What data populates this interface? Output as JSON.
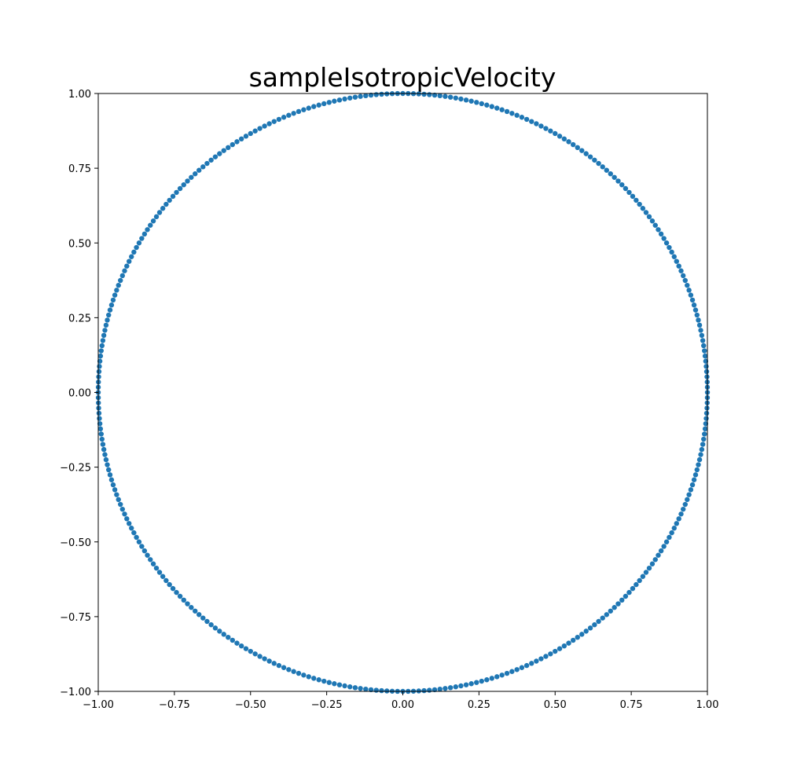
{
  "chart_data": {
    "type": "scatter",
    "title": "sampleIsotropicVelocity",
    "xlabel": "",
    "ylabel": "",
    "xlim": [
      -1.0,
      1.0
    ],
    "ylim": [
      -1.0,
      1.0
    ],
    "xticks": [
      -1.0,
      -0.75,
      -0.5,
      -0.25,
      0.0,
      0.25,
      0.5,
      0.75,
      1.0
    ],
    "yticks": [
      -1.0,
      -0.75,
      -0.5,
      -0.25,
      0.0,
      0.25,
      0.5,
      0.75,
      1.0
    ],
    "xtick_labels": [
      "−1.00",
      "−0.75",
      "−0.50",
      "−0.25",
      "0.00",
      "0.25",
      "0.50",
      "0.75",
      "1.00"
    ],
    "ytick_labels": [
      "−1.00",
      "−0.75",
      "−0.50",
      "−0.25",
      "0.00",
      "0.25",
      "0.50",
      "0.75",
      "1.00"
    ],
    "grid": false,
    "legend": "none",
    "marker_color": "#1f77b4",
    "point_count": 360,
    "series": [
      {
        "description": "unit circle x=cos(t), y=sin(t)",
        "radius": 1.0
      }
    ]
  }
}
